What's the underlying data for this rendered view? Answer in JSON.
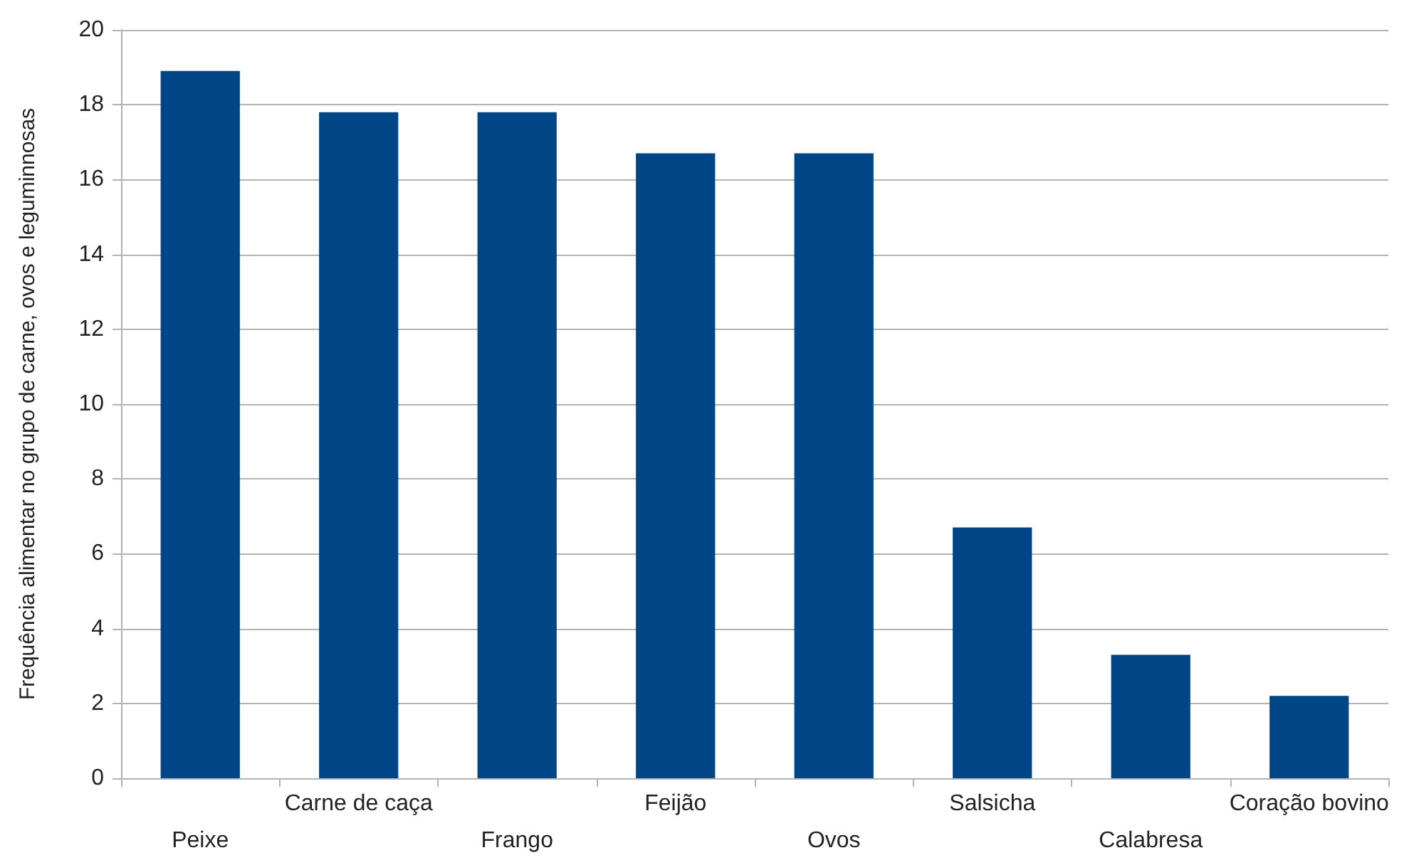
{
  "chart_data": {
    "type": "bar",
    "ylabel": "Frequência alimentar no grupo de carne, ovos e leguminnosas",
    "categories": [
      "Peixe",
      "Carne de caça",
      "Frango",
      "Feijão",
      "Ovos",
      "Salsicha",
      "Calabresa",
      "Coração bovino"
    ],
    "values": [
      18.9,
      17.8,
      17.8,
      16.7,
      16.7,
      6.7,
      3.3,
      2.2
    ],
    "color": "#004586",
    "ylim": [
      0,
      20
    ],
    "yticks": [
      0,
      2,
      4,
      6,
      8,
      10,
      12,
      14,
      16,
      18,
      20
    ],
    "grid": "y"
  }
}
